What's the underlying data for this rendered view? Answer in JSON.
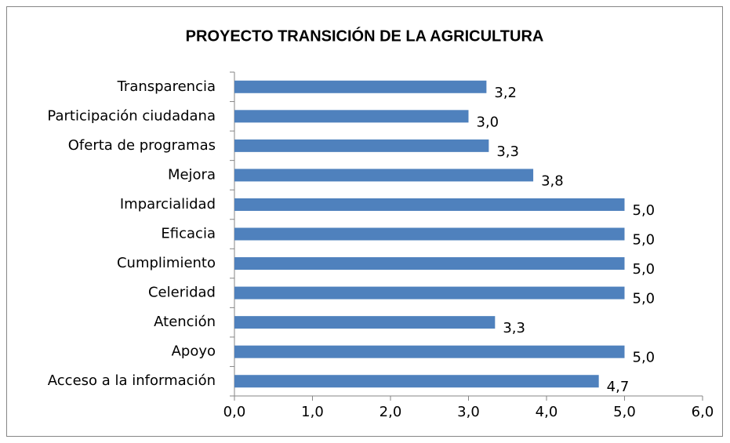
{
  "chart_data": {
    "type": "barh",
    "title": "PROYECTO TRANSICIÓN DE LA AGRICULTURA",
    "categories": [
      "Transparencia",
      "Participación ciudadana",
      "Oferta de programas",
      "Mejora",
      "Imparcialidad",
      "Eficacia",
      "Cumplimiento",
      "Celeridad",
      "Atención",
      "Apoyo",
      "Acceso a la información"
    ],
    "values": [
      3.23,
      3.0,
      3.26,
      3.83,
      5.0,
      5.0,
      5.0,
      5.0,
      3.34,
      5.0,
      4.67
    ],
    "value_labels": [
      "3,2",
      "3,0",
      "3,3",
      "3,8",
      "5,0",
      "5,0",
      "5,0",
      "5,0",
      "3,3",
      "5,0",
      "4,7"
    ],
    "color": "#4f81bd",
    "xlim": [
      0,
      6
    ],
    "xticks": [
      {
        "value": 0,
        "label": "0,0"
      },
      {
        "value": 1,
        "label": "1,0"
      },
      {
        "value": 2,
        "label": "2,0"
      },
      {
        "value": 3,
        "label": "3,0"
      },
      {
        "value": 4,
        "label": "4,0"
      },
      {
        "value": 5,
        "label": "5,0"
      },
      {
        "value": 6,
        "label": "6,0"
      }
    ],
    "grid": false
  }
}
